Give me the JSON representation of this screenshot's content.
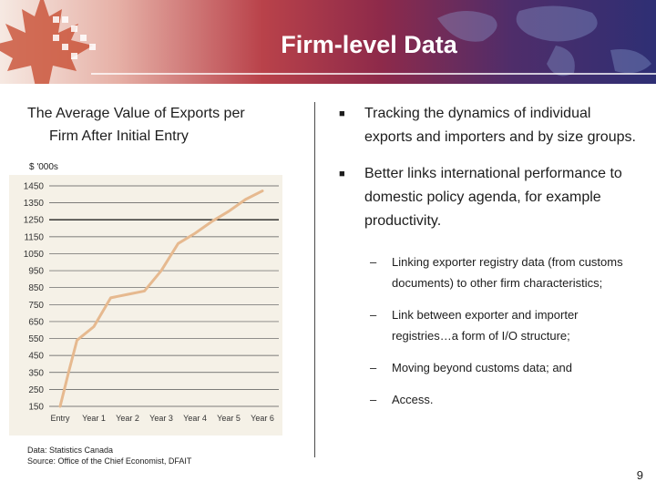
{
  "slide": {
    "title": "Firm-level Data",
    "page_number": "9"
  },
  "left": {
    "chart_title_line1": "The Average Value of Exports per",
    "chart_title_line2": "Firm After Initial Entry",
    "unit_label": "$ '000s",
    "source_line1": "Data: Statistics Canada",
    "source_line2": "Source: Office of the Chief Economist, DFAIT"
  },
  "right": {
    "bullet1": "Tracking the dynamics of individual exports and importers and by size groups.",
    "bullet2": "Better links international performance to domestic policy agenda, for example productivity.",
    "sub_items": [
      "Linking exporter registry data (from customs documents) to other firm characteristics;",
      "Link between exporter and importer registries…a form of I/O structure;",
      "Moving beyond customs data; and",
      "Access."
    ]
  },
  "colors": {
    "line": "#e6b98f",
    "banner_red": "#b9424a",
    "banner_blue": "#2e2f74",
    "chart_bg": "#f5f1e7"
  },
  "chart_data": {
    "type": "line",
    "title": "The Average Value of Exports per Firm After Initial Entry",
    "ylabel": "$ '000s",
    "categories": [
      "Entry",
      "Year 1",
      "Year 2",
      "Year 3",
      "Year 4",
      "Year 5",
      "Year 6"
    ],
    "x": [
      0,
      0.25,
      0.5,
      1,
      1.5,
      2,
      2.5,
      3,
      3.5,
      4,
      4.5,
      5,
      5.5,
      6
    ],
    "values": [
      150,
      350,
      540,
      620,
      790,
      810,
      830,
      950,
      1110,
      1170,
      1240,
      1300,
      1370,
      1420
    ],
    "yticks": [
      150,
      250,
      350,
      450,
      550,
      650,
      750,
      850,
      950,
      1050,
      1150,
      1250,
      1350,
      1450
    ],
    "ylim": [
      150,
      1450
    ],
    "grid": true
  }
}
